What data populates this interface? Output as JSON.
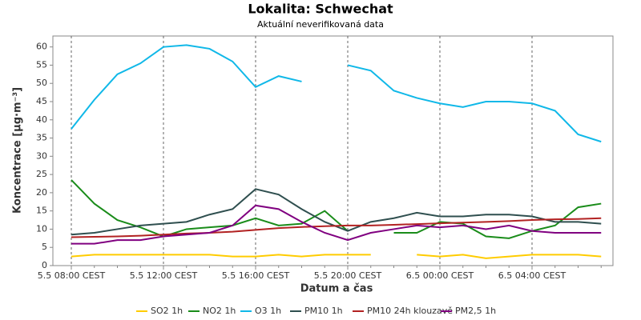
{
  "chart_data": {
    "type": "line",
    "title": "Lokalita: Schwechat",
    "subtitle": "Aktuální neverifikovaná data",
    "x_label": "Datum a čas",
    "y_label": "Koncentrace [µg·m⁻³]",
    "categories": [
      "5.5 08:00 CEST",
      null,
      null,
      null,
      "5.5 12:00 CEST",
      null,
      null,
      null,
      "5.5 16:00 CEST",
      null,
      null,
      null,
      "5.5 20:00 CEST",
      null,
      null,
      null,
      "6.5 00:00 CEST",
      null,
      null,
      null,
      "6.5 04:00 CEST",
      null,
      null,
      null
    ],
    "ylim": [
      0,
      63
    ],
    "yticks": [
      0,
      5,
      10,
      15,
      20,
      25,
      30,
      35,
      40,
      45,
      50,
      55,
      60
    ],
    "grid": "x",
    "legend": "bottom",
    "series": [
      {
        "name": "SO2 1h",
        "color": "#ffcc00",
        "values": [
          2.5,
          3,
          3,
          3,
          3,
          3,
          3,
          2.5,
          2.5,
          3,
          2.5,
          3,
          3,
          3,
          null,
          3,
          2.5,
          3,
          2,
          2.5,
          3,
          3,
          3,
          2.5
        ]
      },
      {
        "name": "NO2 1h",
        "color": "#1a8c1a",
        "values": [
          23.5,
          17,
          12.5,
          10.5,
          8,
          10,
          10.5,
          11,
          13,
          11,
          11.5,
          15,
          9.5,
          null,
          9,
          9,
          12,
          11.5,
          8,
          7.5,
          9.5,
          11,
          16,
          17
        ]
      },
      {
        "name": "O3 1h",
        "color": "#10b8e8",
        "values": [
          37.5,
          45.5,
          52.5,
          55.5,
          60,
          60.5,
          59.5,
          56,
          49,
          52,
          50.5,
          null,
          55,
          53.5,
          48,
          46,
          44.5,
          43.5,
          45,
          45,
          44.5,
          42.5,
          36,
          34
        ]
      },
      {
        "name": "PM10 1h",
        "color": "#2f4f4f",
        "values": [
          8.5,
          9,
          10,
          11,
          11.5,
          12,
          14,
          15.5,
          21,
          19.5,
          15.5,
          12,
          9.5,
          12,
          13,
          14.5,
          13.5,
          13.5,
          14,
          14,
          13.5,
          12,
          12,
          11.5
        ]
      },
      {
        "name": "PM10 24h klouzavě",
        "color": "#b22222",
        "values": [
          7.8,
          7.9,
          8,
          8.2,
          8.5,
          8.8,
          9,
          9.3,
          9.8,
          10.3,
          10.6,
          10.8,
          11,
          11,
          11.2,
          11.4,
          11.6,
          11.8,
          12,
          12.2,
          12.5,
          12.7,
          12.8,
          13
        ]
      },
      {
        "name": "PM2,5 1h",
        "color": "#800080",
        "values": [
          6,
          6,
          7,
          7,
          8,
          8.5,
          9,
          11,
          16.5,
          15.5,
          12,
          9,
          7,
          9,
          10,
          11,
          10.5,
          11,
          10,
          11,
          9.5,
          9,
          9,
          9
        ]
      }
    ]
  }
}
